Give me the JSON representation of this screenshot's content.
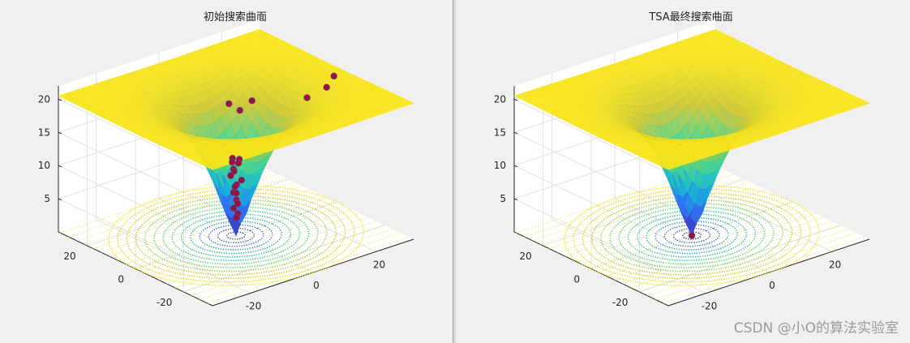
{
  "chart_data": [
    {
      "type": "surface3d",
      "title": "初始搜索曲面",
      "zticks": [
        "5",
        "10",
        "15",
        "20"
      ],
      "yticks": [
        "20",
        "0",
        "-20"
      ],
      "xticks": [
        "-20",
        "0",
        "20"
      ],
      "zlim": [
        0,
        22
      ],
      "xlim": [
        -32,
        32
      ],
      "ylim": [
        -32,
        32
      ],
      "grid": true,
      "contour_on_floor": true,
      "colormap": [
        "#3e26a8",
        "#2f6ff0",
        "#16b9d5",
        "#4bd38a",
        "#c7c530",
        "#f9e51a"
      ],
      "points": [
        {
          "x": -0.8,
          "y": 0.4,
          "z": 11.7
        },
        {
          "x": 0.6,
          "y": -0.6,
          "z": 11.5
        },
        {
          "x": -0.3,
          "y": 1.2,
          "z": 10.9
        },
        {
          "x": 1.0,
          "y": 0.3,
          "z": 10.7
        },
        {
          "x": -1.2,
          "y": -0.5,
          "z": 10.3
        },
        {
          "x": 0.4,
          "y": 1.3,
          "z": 9.4
        },
        {
          "x": -0.9,
          "y": 1.0,
          "z": 9.0
        },
        {
          "x": 0.9,
          "y": -1.1,
          "z": 8.4
        },
        {
          "x": -0.5,
          "y": -0.9,
          "z": 7.9
        },
        {
          "x": 0.2,
          "y": 0.7,
          "z": 7.2
        },
        {
          "x": -0.7,
          "y": 0.1,
          "z": 6.6
        },
        {
          "x": 0.6,
          "y": 0.6,
          "z": 6.2
        },
        {
          "x": -0.2,
          "y": -0.4,
          "z": 5.5
        },
        {
          "x": 0.4,
          "y": -0.2,
          "z": 4.8
        },
        {
          "x": -0.4,
          "y": 0.5,
          "z": 4.1
        },
        {
          "x": 0.1,
          "y": -0.6,
          "z": 3.4
        },
        {
          "x": 0.3,
          "y": 0.2,
          "z": 2.6
        },
        {
          "x": 2.5,
          "y": 6.2,
          "z": 18.4
        },
        {
          "x": 3.5,
          "y": 3.0,
          "z": 17.8
        },
        {
          "x": 7.0,
          "y": 2.5,
          "z": 18.8
        },
        {
          "x": 18.0,
          "y": -6.0,
          "z": 19.0
        },
        {
          "x": 25.0,
          "y": -5.0,
          "z": 19.3
        },
        {
          "x": 30.0,
          "y": -1.5,
          "z": 19.6
        }
      ]
    },
    {
      "type": "surface3d",
      "title": "TSA最终搜索曲面",
      "zticks": [
        "5",
        "10",
        "15",
        "20"
      ],
      "yticks": [
        "20",
        "0",
        "-20"
      ],
      "xticks": [
        "-20",
        "0",
        "20"
      ],
      "zlim": [
        0,
        22
      ],
      "xlim": [
        -32,
        32
      ],
      "ylim": [
        -32,
        32
      ],
      "grid": true,
      "contour_on_floor": true,
      "colormap": [
        "#3e26a8",
        "#2f6ff0",
        "#16b9d5",
        "#4bd38a",
        "#c7c530",
        "#f9e51a"
      ],
      "points": [
        {
          "x": 0,
          "y": 0,
          "z": 0
        }
      ]
    }
  ],
  "watermark": "CSDN @小O的算法实验室"
}
